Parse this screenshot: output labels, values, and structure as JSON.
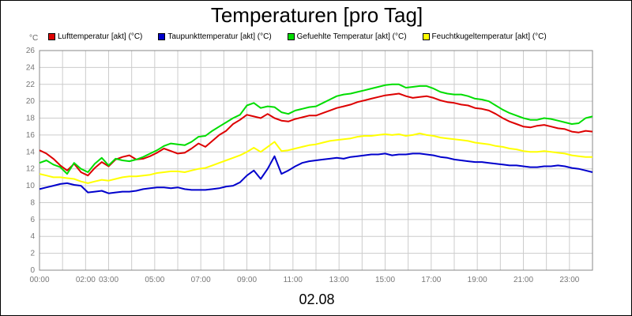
{
  "chart_data": {
    "type": "line",
    "title": "Temperaturen [pro Tag]",
    "unit": "°C",
    "xlabel": "02.08",
    "ylim": [
      0,
      26
    ],
    "y_ticks": [
      0,
      2,
      4,
      6,
      8,
      10,
      12,
      14,
      16,
      18,
      20,
      22,
      24,
      26
    ],
    "x_range_hours": [
      0,
      24
    ],
    "x_ticks": [
      {
        "hour": 0,
        "label": "00:00"
      },
      {
        "hour": 2,
        "label": "02:00"
      },
      {
        "hour": 3,
        "label": "03:00"
      },
      {
        "hour": 5,
        "label": "05:00"
      },
      {
        "hour": 7,
        "label": "07:00"
      },
      {
        "hour": 9,
        "label": "09:00"
      },
      {
        "hour": 11,
        "label": "11:00"
      },
      {
        "hour": 13,
        "label": "13:00"
      },
      {
        "hour": 15,
        "label": "15:00"
      },
      {
        "hour": 17,
        "label": "17:00"
      },
      {
        "hour": 19,
        "label": "19:00"
      },
      {
        "hour": 21,
        "label": "21:00"
      },
      {
        "hour": 23,
        "label": "23:00"
      }
    ],
    "grid": true,
    "legend_position": "top",
    "background": "#ffffff",
    "grid_color": "#cccccc",
    "series": [
      {
        "name": "Lufttemperatur [akt] (°C)",
        "color": "#dd0000",
        "x": [
          0,
          0.3,
          0.6,
          0.9,
          1.2,
          1.5,
          1.8,
          2.1,
          2.4,
          2.7,
          3,
          3.3,
          3.6,
          3.9,
          4.2,
          4.5,
          4.8,
          5.1,
          5.4,
          5.7,
          6,
          6.3,
          6.6,
          6.9,
          7.2,
          7.5,
          7.8,
          8.1,
          8.4,
          8.7,
          9,
          9.3,
          9.6,
          9.9,
          10.2,
          10.5,
          10.8,
          11.1,
          11.4,
          11.7,
          12,
          12.3,
          12.6,
          12.9,
          13.2,
          13.5,
          13.8,
          14.1,
          14.4,
          14.7,
          15,
          15.3,
          15.6,
          15.9,
          16.2,
          16.5,
          16.8,
          17.1,
          17.4,
          17.7,
          18,
          18.3,
          18.6,
          18.9,
          19.2,
          19.5,
          19.8,
          20.1,
          20.4,
          20.7,
          21,
          21.3,
          21.6,
          21.9,
          22.2,
          22.5,
          22.8,
          23.1,
          23.4,
          23.7,
          24
        ],
        "y": [
          14.2,
          13.8,
          13.2,
          12.4,
          11.8,
          12.6,
          11.6,
          11.2,
          12.1,
          12.8,
          12.3,
          13.1,
          13.4,
          13.6,
          13.1,
          13.2,
          13.5,
          13.9,
          14.4,
          14.1,
          13.8,
          13.9,
          14.4,
          15.0,
          14.6,
          15.3,
          16.0,
          16.5,
          17.3,
          17.8,
          18.4,
          18.2,
          18.0,
          18.5,
          18.0,
          17.7,
          17.6,
          17.9,
          18.1,
          18.3,
          18.3,
          18.6,
          18.9,
          19.2,
          19.4,
          19.6,
          19.9,
          20.1,
          20.3,
          20.5,
          20.7,
          20.8,
          20.9,
          20.6,
          20.4,
          20.5,
          20.6,
          20.4,
          20.1,
          19.9,
          19.8,
          19.6,
          19.5,
          19.2,
          19.1,
          18.9,
          18.5,
          18.0,
          17.6,
          17.3,
          17.0,
          16.9,
          17.1,
          17.2,
          17.0,
          16.8,
          16.7,
          16.4,
          16.3,
          16.5,
          16.4
        ]
      },
      {
        "name": "Taupunkttemperatur [akt] (°C)",
        "color": "#0000cc",
        "x": [
          0,
          0.3,
          0.6,
          0.9,
          1.2,
          1.5,
          1.8,
          2.1,
          2.4,
          2.7,
          3,
          3.3,
          3.6,
          3.9,
          4.2,
          4.5,
          4.8,
          5.1,
          5.4,
          5.7,
          6,
          6.3,
          6.6,
          6.9,
          7.2,
          7.5,
          7.8,
          8.1,
          8.4,
          8.7,
          9,
          9.3,
          9.6,
          9.9,
          10.2,
          10.5,
          10.8,
          11.1,
          11.4,
          11.7,
          12,
          12.3,
          12.6,
          12.9,
          13.2,
          13.5,
          13.8,
          14.1,
          14.4,
          14.7,
          15,
          15.3,
          15.6,
          15.9,
          16.2,
          16.5,
          16.8,
          17.1,
          17.4,
          17.7,
          18,
          18.3,
          18.6,
          18.9,
          19.2,
          19.5,
          19.8,
          20.1,
          20.4,
          20.7,
          21,
          21.3,
          21.6,
          21.9,
          22.2,
          22.5,
          22.8,
          23.1,
          23.4,
          23.7,
          24
        ],
        "y": [
          9.6,
          9.8,
          10.0,
          10.2,
          10.3,
          10.1,
          10.0,
          9.2,
          9.3,
          9.4,
          9.1,
          9.2,
          9.3,
          9.3,
          9.4,
          9.6,
          9.7,
          9.8,
          9.8,
          9.7,
          9.8,
          9.6,
          9.5,
          9.5,
          9.5,
          9.6,
          9.7,
          9.9,
          10.0,
          10.4,
          11.2,
          11.8,
          10.8,
          12.0,
          13.5,
          11.4,
          11.8,
          12.3,
          12.7,
          12.9,
          13.0,
          13.1,
          13.2,
          13.3,
          13.2,
          13.4,
          13.5,
          13.6,
          13.7,
          13.7,
          13.8,
          13.6,
          13.7,
          13.7,
          13.8,
          13.8,
          13.7,
          13.6,
          13.4,
          13.3,
          13.1,
          13.0,
          12.9,
          12.8,
          12.8,
          12.7,
          12.6,
          12.5,
          12.4,
          12.4,
          12.3,
          12.2,
          12.2,
          12.3,
          12.3,
          12.4,
          12.3,
          12.1,
          12.0,
          11.8,
          11.6
        ]
      },
      {
        "name": "Gefuehlte Temperatur [akt] (°C)",
        "color": "#00dd00",
        "x": [
          0,
          0.3,
          0.6,
          0.9,
          1.2,
          1.5,
          1.8,
          2.1,
          2.4,
          2.7,
          3,
          3.3,
          3.6,
          3.9,
          4.2,
          4.5,
          4.8,
          5.1,
          5.4,
          5.7,
          6,
          6.3,
          6.6,
          6.9,
          7.2,
          7.5,
          7.8,
          8.1,
          8.4,
          8.7,
          9,
          9.3,
          9.6,
          9.9,
          10.2,
          10.5,
          10.8,
          11.1,
          11.4,
          11.7,
          12,
          12.3,
          12.6,
          12.9,
          13.2,
          13.5,
          13.8,
          14.1,
          14.4,
          14.7,
          15,
          15.3,
          15.6,
          15.9,
          16.2,
          16.5,
          16.8,
          17.1,
          17.4,
          17.7,
          18,
          18.3,
          18.6,
          18.9,
          19.2,
          19.5,
          19.8,
          20.1,
          20.4,
          20.7,
          21,
          21.3,
          21.6,
          21.9,
          22.2,
          22.5,
          22.8,
          23.1,
          23.4,
          23.7,
          24
        ],
        "y": [
          12.7,
          13.0,
          12.5,
          12.2,
          11.4,
          12.7,
          12.0,
          11.6,
          12.6,
          13.3,
          12.4,
          13.2,
          13.0,
          12.9,
          13.1,
          13.4,
          13.8,
          14.2,
          14.7,
          15.0,
          14.9,
          14.8,
          15.2,
          15.8,
          15.9,
          16.5,
          17.0,
          17.5,
          18.0,
          18.4,
          19.5,
          19.8,
          19.2,
          19.4,
          19.3,
          18.7,
          18.5,
          18.9,
          19.1,
          19.3,
          19.4,
          19.8,
          20.2,
          20.6,
          20.8,
          20.9,
          21.1,
          21.3,
          21.5,
          21.7,
          21.9,
          22.0,
          22.0,
          21.6,
          21.7,
          21.8,
          21.8,
          21.5,
          21.1,
          20.9,
          20.8,
          20.8,
          20.6,
          20.3,
          20.2,
          20.0,
          19.5,
          19.0,
          18.6,
          18.3,
          18.0,
          17.8,
          17.8,
          18.0,
          17.9,
          17.7,
          17.5,
          17.3,
          17.4,
          18.0,
          18.2
        ]
      },
      {
        "name": "Feuchtkugeltemperatur [akt] (°C)",
        "color": "#ffff00",
        "x": [
          0,
          0.3,
          0.6,
          0.9,
          1.2,
          1.5,
          1.8,
          2.1,
          2.4,
          2.7,
          3,
          3.3,
          3.6,
          3.9,
          4.2,
          4.5,
          4.8,
          5.1,
          5.4,
          5.7,
          6,
          6.3,
          6.6,
          6.9,
          7.2,
          7.5,
          7.8,
          8.1,
          8.4,
          8.7,
          9,
          9.3,
          9.6,
          9.9,
          10.2,
          10.5,
          10.8,
          11.1,
          11.4,
          11.7,
          12,
          12.3,
          12.6,
          12.9,
          13.2,
          13.5,
          13.8,
          14.1,
          14.4,
          14.7,
          15,
          15.3,
          15.6,
          15.9,
          16.2,
          16.5,
          16.8,
          17.1,
          17.4,
          17.7,
          18,
          18.3,
          18.6,
          18.9,
          19.2,
          19.5,
          19.8,
          20.1,
          20.4,
          20.7,
          21,
          21.3,
          21.6,
          21.9,
          22.2,
          22.5,
          22.8,
          23.1,
          23.4,
          23.7,
          24
        ],
        "y": [
          11.4,
          11.2,
          11.0,
          11.0,
          10.9,
          10.8,
          10.5,
          10.3,
          10.5,
          10.7,
          10.6,
          10.8,
          11.0,
          11.1,
          11.1,
          11.2,
          11.3,
          11.5,
          11.6,
          11.7,
          11.7,
          11.6,
          11.8,
          12.0,
          12.1,
          12.4,
          12.7,
          13.0,
          13.3,
          13.6,
          14.0,
          14.5,
          14.0,
          14.6,
          15.2,
          14.1,
          14.2,
          14.4,
          14.6,
          14.8,
          14.9,
          15.1,
          15.3,
          15.4,
          15.5,
          15.6,
          15.8,
          15.9,
          15.9,
          16.0,
          16.1,
          16.0,
          16.1,
          15.9,
          16.0,
          16.2,
          16.0,
          15.9,
          15.7,
          15.6,
          15.5,
          15.4,
          15.3,
          15.1,
          15.0,
          14.9,
          14.7,
          14.6,
          14.4,
          14.3,
          14.1,
          14.0,
          14.0,
          14.1,
          14.0,
          13.9,
          13.8,
          13.6,
          13.5,
          13.4,
          13.4
        ]
      }
    ]
  }
}
